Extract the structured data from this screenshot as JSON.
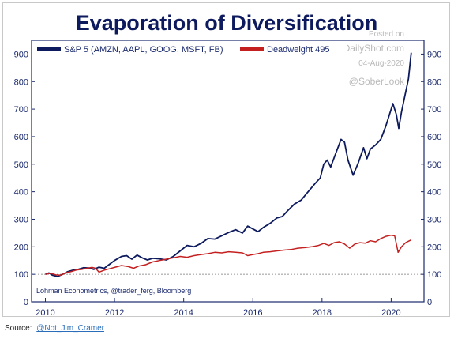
{
  "chart_data": {
    "type": "line",
    "title": "Evaporation of Diversification",
    "xlabel": "",
    "ylabel": "",
    "x_ticks": [
      2010,
      2012,
      2014,
      2016,
      2018,
      2020
    ],
    "y_ticks": [
      0,
      100,
      200,
      300,
      400,
      500,
      600,
      700,
      800,
      900
    ],
    "xlim": [
      2009.6,
      2020.95
    ],
    "ylim": [
      0,
      950
    ],
    "legend_position": "top",
    "grid": false,
    "reference_line": 100,
    "note": "Lohman Econometrics, @trader_ferg, Bloomberg",
    "watermark": [
      "Posted on",
      "TheDailyShot.com",
      "04-Aug-2020",
      "@SoberLook"
    ],
    "series": [
      {
        "name": "S&P 5 (AMZN, AAPL, GOOG, MSFT, FB)",
        "color": "#0d1a5e",
        "points": [
          [
            2010.0,
            100
          ],
          [
            2010.1,
            105
          ],
          [
            2010.2,
            97
          ],
          [
            2010.35,
            92
          ],
          [
            2010.5,
            100
          ],
          [
            2010.65,
            110
          ],
          [
            2010.8,
            115
          ],
          [
            2010.95,
            118
          ],
          [
            2011.1,
            124
          ],
          [
            2011.25,
            123
          ],
          [
            2011.4,
            118
          ],
          [
            2011.55,
            126
          ],
          [
            2011.7,
            122
          ],
          [
            2011.85,
            136
          ],
          [
            2012.0,
            150
          ],
          [
            2012.2,
            165
          ],
          [
            2012.35,
            168
          ],
          [
            2012.5,
            155
          ],
          [
            2012.65,
            170
          ],
          [
            2012.8,
            160
          ],
          [
            2012.95,
            152
          ],
          [
            2013.1,
            158
          ],
          [
            2013.3,
            156
          ],
          [
            2013.5,
            152
          ],
          [
            2013.7,
            165
          ],
          [
            2013.9,
            185
          ],
          [
            2014.1,
            205
          ],
          [
            2014.3,
            200
          ],
          [
            2014.5,
            212
          ],
          [
            2014.7,
            230
          ],
          [
            2014.9,
            228
          ],
          [
            2015.1,
            240
          ],
          [
            2015.3,
            252
          ],
          [
            2015.5,
            262
          ],
          [
            2015.7,
            250
          ],
          [
            2015.85,
            275
          ],
          [
            2016.0,
            265
          ],
          [
            2016.15,
            255
          ],
          [
            2016.3,
            270
          ],
          [
            2016.5,
            285
          ],
          [
            2016.7,
            305
          ],
          [
            2016.85,
            310
          ],
          [
            2017.0,
            330
          ],
          [
            2017.2,
            355
          ],
          [
            2017.4,
            370
          ],
          [
            2017.6,
            400
          ],
          [
            2017.8,
            430
          ],
          [
            2017.95,
            450
          ],
          [
            2018.05,
            500
          ],
          [
            2018.15,
            515
          ],
          [
            2018.25,
            490
          ],
          [
            2018.4,
            540
          ],
          [
            2018.55,
            590
          ],
          [
            2018.65,
            580
          ],
          [
            2018.75,
            515
          ],
          [
            2018.9,
            460
          ],
          [
            2019.05,
            505
          ],
          [
            2019.2,
            560
          ],
          [
            2019.3,
            520
          ],
          [
            2019.4,
            555
          ],
          [
            2019.55,
            570
          ],
          [
            2019.7,
            590
          ],
          [
            2019.85,
            640
          ],
          [
            2019.95,
            680
          ],
          [
            2020.05,
            720
          ],
          [
            2020.15,
            680
          ],
          [
            2020.22,
            630
          ],
          [
            2020.3,
            690
          ],
          [
            2020.4,
            750
          ],
          [
            2020.5,
            810
          ],
          [
            2020.58,
            905
          ]
        ]
      },
      {
        "name": "Deadweight 495",
        "color": "#c42020",
        "points": [
          [
            2010.0,
            100
          ],
          [
            2010.15,
            104
          ],
          [
            2010.3,
            98
          ],
          [
            2010.45,
            97
          ],
          [
            2010.6,
            106
          ],
          [
            2010.75,
            110
          ],
          [
            2010.9,
            116
          ],
          [
            2011.05,
            118
          ],
          [
            2011.2,
            122
          ],
          [
            2011.35,
            125
          ],
          [
            2011.45,
            122
          ],
          [
            2011.55,
            108
          ],
          [
            2011.7,
            115
          ],
          [
            2011.85,
            120
          ],
          [
            2012.0,
            125
          ],
          [
            2012.2,
            132
          ],
          [
            2012.4,
            128
          ],
          [
            2012.55,
            122
          ],
          [
            2012.7,
            130
          ],
          [
            2012.9,
            135
          ],
          [
            2013.1,
            145
          ],
          [
            2013.3,
            150
          ],
          [
            2013.5,
            155
          ],
          [
            2013.7,
            160
          ],
          [
            2013.9,
            165
          ],
          [
            2014.1,
            162
          ],
          [
            2014.3,
            168
          ],
          [
            2014.5,
            172
          ],
          [
            2014.7,
            175
          ],
          [
            2014.9,
            180
          ],
          [
            2015.1,
            178
          ],
          [
            2015.3,
            182
          ],
          [
            2015.5,
            180
          ],
          [
            2015.7,
            178
          ],
          [
            2015.85,
            168
          ],
          [
            2016.0,
            172
          ],
          [
            2016.15,
            175
          ],
          [
            2016.3,
            180
          ],
          [
            2016.5,
            182
          ],
          [
            2016.7,
            185
          ],
          [
            2016.9,
            188
          ],
          [
            2017.1,
            190
          ],
          [
            2017.3,
            195
          ],
          [
            2017.5,
            197
          ],
          [
            2017.7,
            200
          ],
          [
            2017.9,
            205
          ],
          [
            2018.05,
            212
          ],
          [
            2018.2,
            205
          ],
          [
            2018.35,
            215
          ],
          [
            2018.5,
            218
          ],
          [
            2018.65,
            210
          ],
          [
            2018.8,
            195
          ],
          [
            2018.95,
            210
          ],
          [
            2019.1,
            215
          ],
          [
            2019.25,
            213
          ],
          [
            2019.4,
            222
          ],
          [
            2019.55,
            218
          ],
          [
            2019.7,
            230
          ],
          [
            2019.85,
            238
          ],
          [
            2020.0,
            242
          ],
          [
            2020.1,
            240
          ],
          [
            2020.2,
            180
          ],
          [
            2020.3,
            200
          ],
          [
            2020.42,
            215
          ],
          [
            2020.58,
            225
          ]
        ]
      }
    ]
  },
  "footer": {
    "source_label": "Source:",
    "source_link": "@Not_Jim_Cramer"
  }
}
